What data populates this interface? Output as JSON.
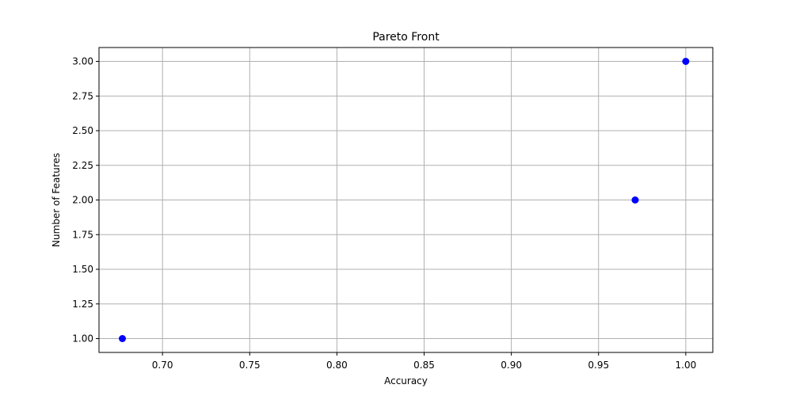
{
  "chart_data": {
    "type": "scatter",
    "title": "Pareto Front",
    "xlabel": "Accuracy",
    "ylabel": "Number of Features",
    "xlim": [
      0.6636,
      1.0155
    ],
    "ylim": [
      0.9,
      3.1
    ],
    "x_ticks": [
      0.7,
      0.75,
      0.8,
      0.85,
      0.9,
      0.95,
      1.0
    ],
    "x_tick_labels": [
      "0.70",
      "0.75",
      "0.80",
      "0.85",
      "0.90",
      "0.95",
      "1.00"
    ],
    "y_ticks": [
      1.0,
      1.25,
      1.5,
      1.75,
      2.0,
      2.25,
      2.5,
      2.75,
      3.0
    ],
    "y_tick_labels": [
      "1.00",
      "1.25",
      "1.50",
      "1.75",
      "2.00",
      "2.25",
      "2.50",
      "2.75",
      "3.00"
    ],
    "grid": true,
    "point_color": "#0000ff",
    "series": [
      {
        "points": [
          {
            "x": 0.677,
            "y": 1.0
          },
          {
            "x": 0.971,
            "y": 2.0
          },
          {
            "x": 1.0,
            "y": 3.0
          }
        ]
      }
    ]
  }
}
